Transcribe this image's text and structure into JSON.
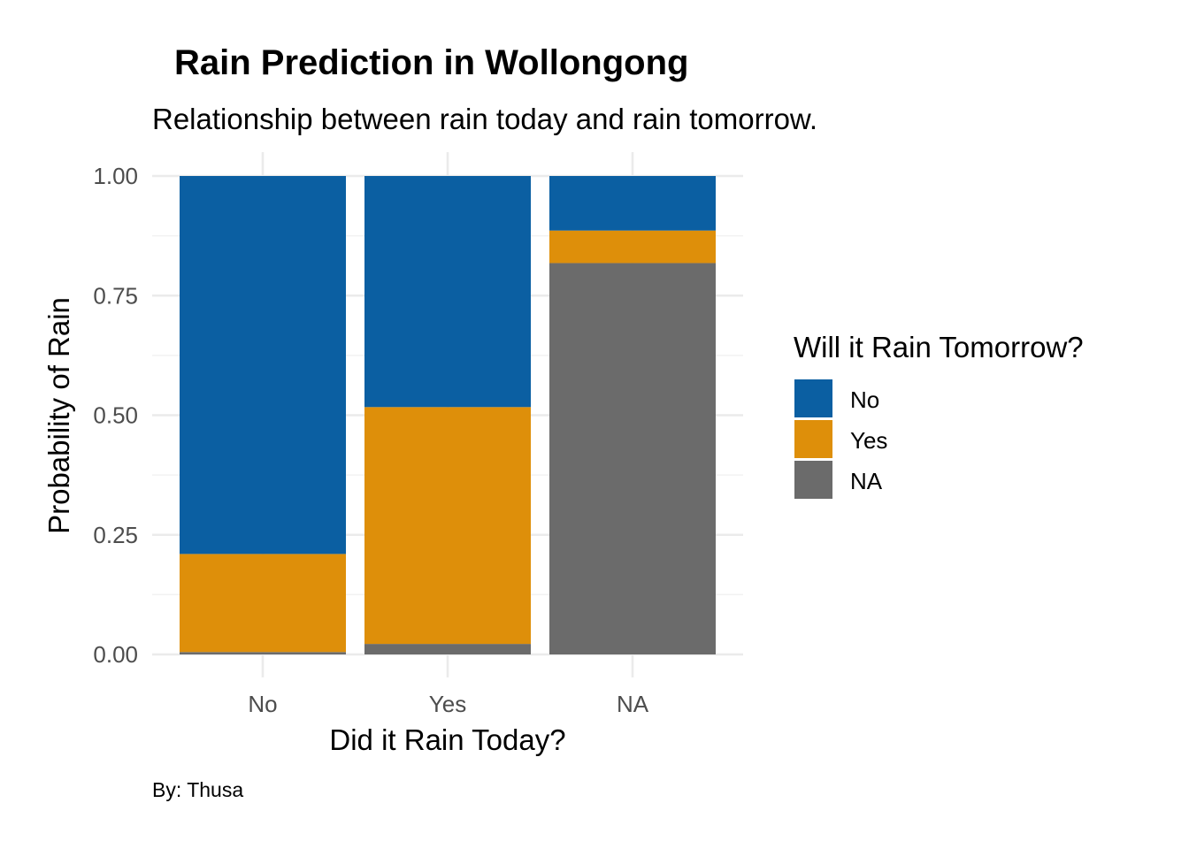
{
  "chart_data": {
    "type": "bar",
    "stacked": "fill",
    "title": "Rain Prediction in Wollongong",
    "subtitle": "Relationship between rain today and rain tomorrow.",
    "caption": "By: Thusa",
    "xlabel": "Did it Rain Today?",
    "ylabel": "Probability of Rain",
    "categories": [
      "No",
      "Yes",
      "NA"
    ],
    "ylim": [
      0,
      1
    ],
    "yticks": [
      "0.00",
      "0.25",
      "0.50",
      "0.75",
      "1.00"
    ],
    "grid": true,
    "legend": {
      "title": "Will it Rain Tomorrow?",
      "position": "right"
    },
    "series": [
      {
        "name": "NA",
        "color": "#6b6b6b",
        "values": [
          0.005,
          0.022,
          0.818
        ]
      },
      {
        "name": "Yes",
        "color": "#de8f0a",
        "values": [
          0.205,
          0.495,
          0.068
        ]
      },
      {
        "name": "No",
        "color": "#0b5fa2",
        "values": [
          0.79,
          0.483,
          0.114
        ]
      }
    ],
    "legend_order": [
      "No",
      "Yes",
      "NA"
    ]
  }
}
